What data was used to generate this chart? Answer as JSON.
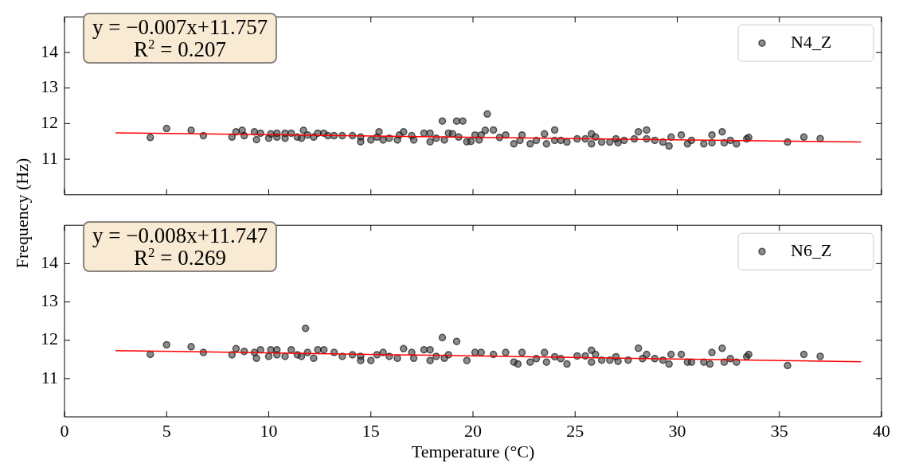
{
  "chart_data": [
    {
      "type": "scatter",
      "ylabel": "Frequency (Hz)",
      "xlim": [
        0,
        40
      ],
      "xticks": [
        0,
        5,
        10,
        15,
        20,
        25,
        30,
        35,
        40
      ],
      "ylim": [
        10,
        15
      ],
      "yticks": [
        11,
        12,
        13,
        14
      ],
      "tick_labels": "y",
      "grid": false,
      "legend": "top right",
      "annotations": [
        "y = −0.007x+11.757",
        "R$^{2}$ = 0.207"
      ],
      "series": [
        {
          "name": "N4_Z",
          "color": "#404040",
          "marker": "circle",
          "x": [
            4.2,
            5.0,
            6.2,
            6.8,
            8.2,
            8.4,
            8.7,
            8.8,
            9.3,
            9.4,
            9.6,
            10.0,
            10.1,
            10.4,
            10.4,
            10.8,
            10.8,
            11.1,
            11.4,
            11.6,
            11.7,
            11.9,
            12.2,
            12.4,
            12.7,
            12.9,
            13.2,
            13.6,
            14.1,
            14.5,
            14.5,
            15.0,
            15.3,
            15.4,
            15.6,
            15.9,
            16.3,
            16.4,
            16.6,
            17.0,
            17.1,
            17.6,
            17.9,
            17.9,
            18.2,
            18.5,
            18.6,
            18.8,
            19.2,
            19.5,
            19.3,
            19.7,
            20.1,
            20.3,
            20.7,
            20.6,
            19.0,
            19.9,
            20.4,
            21.0,
            21.3,
            21.6,
            22.0,
            22.3,
            22.4,
            22.8,
            23.1,
            23.5,
            23.6,
            24.0,
            24.0,
            24.3,
            24.6,
            25.1,
            25.5,
            25.8,
            25.8,
            26.0,
            26.3,
            26.7,
            27.0,
            27.1,
            27.4,
            27.9,
            28.1,
            28.5,
            28.5,
            28.9,
            29.3,
            29.6,
            29.7,
            30.2,
            30.5,
            30.7,
            31.3,
            31.7,
            31.7,
            32.2,
            32.3,
            32.6,
            32.9,
            33.4,
            33.5,
            35.4,
            36.2,
            37.0
          ],
          "values": [
            11.61,
            11.86,
            11.81,
            11.66,
            11.62,
            11.77,
            11.81,
            11.66,
            11.77,
            11.55,
            11.73,
            11.59,
            11.71,
            11.62,
            11.73,
            11.59,
            11.73,
            11.73,
            11.62,
            11.59,
            11.81,
            11.68,
            11.62,
            11.73,
            11.73,
            11.66,
            11.66,
            11.66,
            11.66,
            11.62,
            11.49,
            11.54,
            11.62,
            11.77,
            11.54,
            11.59,
            11.54,
            11.68,
            11.77,
            11.66,
            11.54,
            11.73,
            11.73,
            11.49,
            11.59,
            12.07,
            11.54,
            11.73,
            12.07,
            12.07,
            11.62,
            11.49,
            11.68,
            11.54,
            12.27,
            11.81,
            11.71,
            11.5,
            11.68,
            11.82,
            11.61,
            11.68,
            11.43,
            11.53,
            11.68,
            11.43,
            11.53,
            11.71,
            11.43,
            11.82,
            11.53,
            11.53,
            11.48,
            11.57,
            11.57,
            11.71,
            11.43,
            11.62,
            11.48,
            11.48,
            11.57,
            11.46,
            11.53,
            11.57,
            11.77,
            11.82,
            11.57,
            11.53,
            11.48,
            11.37,
            11.62,
            11.68,
            11.43,
            11.53,
            11.43,
            11.68,
            11.46,
            11.77,
            11.46,
            11.53,
            11.43,
            11.57,
            11.61,
            11.48,
            11.62,
            11.58
          ]
        },
        {
          "type": "line",
          "color": "#ff0000",
          "marker": "none",
          "x": [
            2.5,
            39
          ],
          "values": [
            11.74,
            11.48
          ]
        }
      ]
    },
    {
      "type": "scatter",
      "xlabel": "Temperature (°C)",
      "xlim": [
        0,
        40
      ],
      "xticks": [
        0,
        5,
        10,
        15,
        20,
        25,
        30,
        35,
        40
      ],
      "ylim": [
        10,
        15
      ],
      "yticks": [
        11,
        12,
        13,
        14
      ],
      "grid": false,
      "legend": "top right",
      "annotations": [
        "y = −0.008x+11.747",
        "R$^{2}$ = 0.269"
      ],
      "series": [
        {
          "name": "N6_Z",
          "color": "#404040",
          "marker": "circle",
          "x": [
            4.2,
            5.0,
            6.2,
            6.8,
            8.2,
            8.4,
            8.8,
            9.3,
            9.4,
            9.6,
            10.0,
            10.1,
            10.4,
            10.4,
            10.8,
            11.1,
            11.4,
            11.6,
            11.8,
            11.9,
            12.2,
            12.4,
            12.7,
            13.2,
            13.6,
            14.1,
            14.5,
            14.5,
            15.0,
            15.3,
            15.6,
            15.9,
            16.3,
            16.6,
            17.0,
            17.1,
            17.6,
            17.9,
            17.9,
            18.2,
            18.5,
            18.6,
            18.8,
            19.2,
            19.7,
            20.1,
            20.4,
            21.0,
            21.6,
            22.0,
            22.2,
            22.4,
            22.8,
            23.1,
            23.5,
            23.6,
            24.0,
            24.3,
            24.6,
            25.1,
            25.5,
            25.8,
            25.8,
            26.0,
            26.3,
            26.7,
            27.0,
            27.1,
            27.6,
            28.1,
            28.3,
            28.5,
            28.9,
            29.3,
            29.6,
            29.7,
            30.2,
            30.5,
            30.7,
            31.3,
            31.7,
            31.6,
            32.2,
            32.3,
            32.6,
            32.9,
            33.4,
            33.5,
            35.4,
            36.2,
            37.0
          ],
          "values": [
            11.63,
            11.88,
            11.83,
            11.68,
            11.62,
            11.78,
            11.71,
            11.68,
            11.53,
            11.75,
            11.58,
            11.75,
            11.62,
            11.75,
            11.58,
            11.75,
            11.62,
            11.58,
            12.31,
            11.68,
            11.53,
            11.75,
            11.75,
            11.68,
            11.58,
            11.62,
            11.58,
            11.47,
            11.47,
            11.62,
            11.68,
            11.58,
            11.53,
            11.78,
            11.68,
            11.53,
            11.75,
            11.75,
            11.47,
            11.58,
            12.07,
            11.53,
            11.62,
            11.97,
            11.47,
            11.68,
            11.68,
            11.63,
            11.68,
            11.43,
            11.38,
            11.68,
            11.43,
            11.52,
            11.68,
            11.43,
            11.57,
            11.52,
            11.38,
            11.59,
            11.59,
            11.74,
            11.43,
            11.63,
            11.48,
            11.48,
            11.57,
            11.45,
            11.48,
            11.79,
            11.52,
            11.63,
            11.52,
            11.48,
            11.38,
            11.63,
            11.63,
            11.43,
            11.43,
            11.43,
            11.68,
            11.38,
            11.79,
            11.43,
            11.52,
            11.43,
            11.57,
            11.63,
            11.34,
            11.63,
            11.58
          ]
        },
        {
          "type": "line",
          "color": "#ff0000",
          "marker": "none",
          "x": [
            2.5,
            39
          ],
          "values": [
            11.73,
            11.44
          ]
        }
      ]
    }
  ]
}
